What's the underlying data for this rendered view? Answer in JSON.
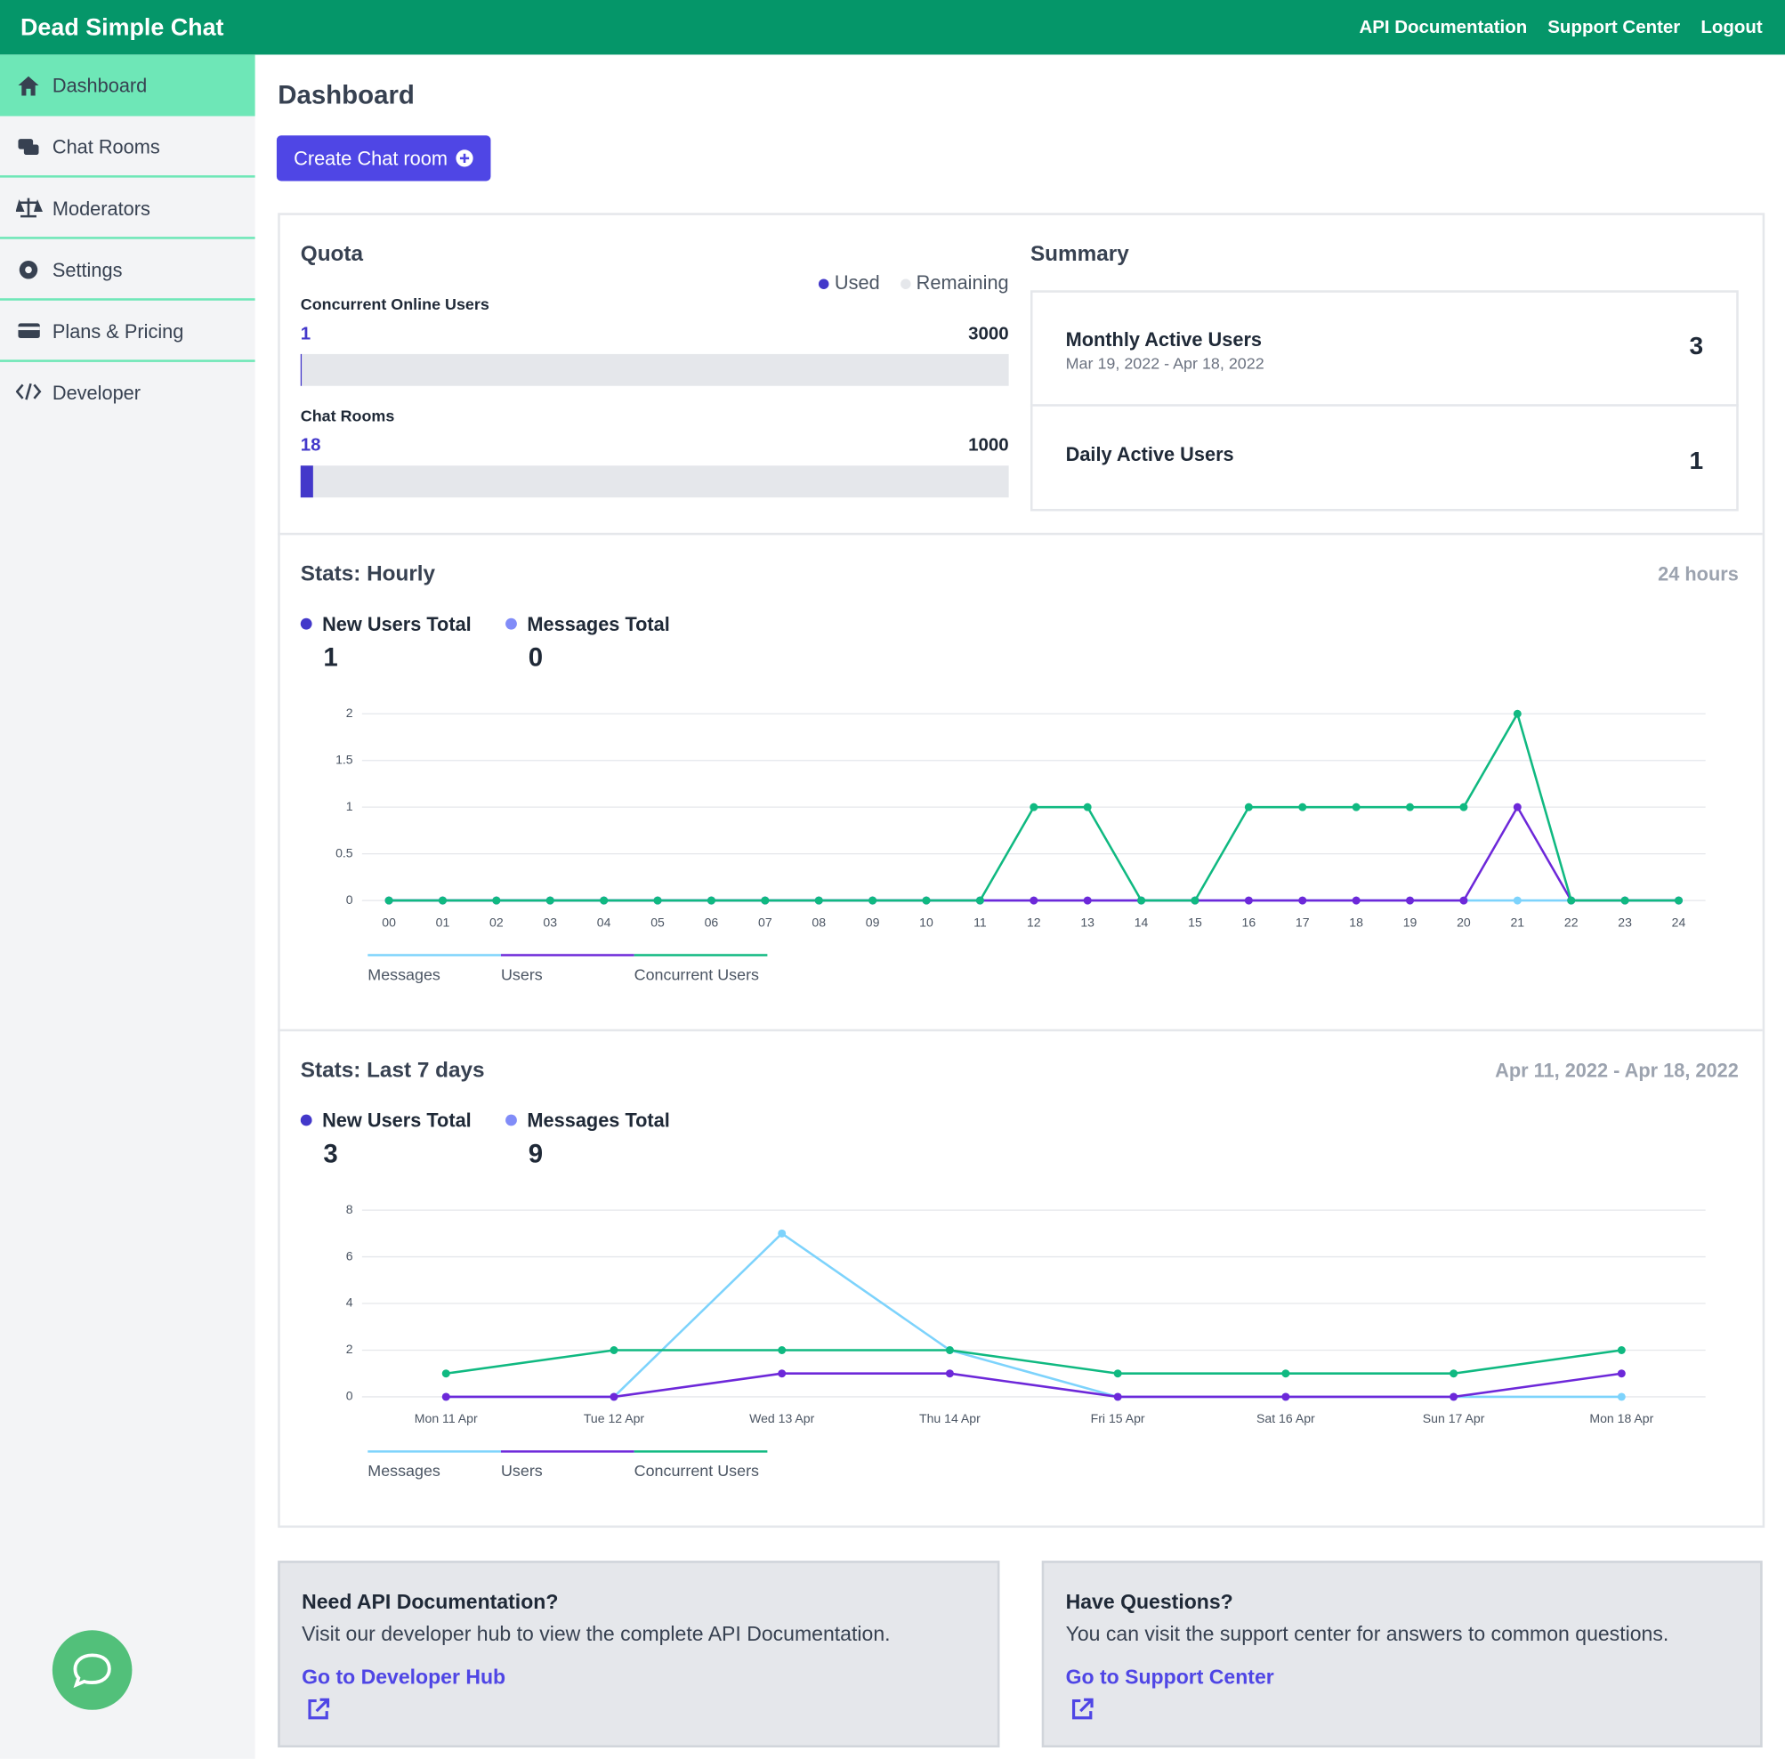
{
  "header": {
    "brand": "Dead Simple Chat",
    "nav": [
      "API Documentation",
      "Support Center",
      "Logout"
    ]
  },
  "sidebar": {
    "items": [
      "Dashboard",
      "Chat Rooms",
      "Moderators",
      "Settings",
      "Plans & Pricing",
      "Developer"
    ]
  },
  "page": {
    "title": "Dashboard",
    "button": "Create Chat room"
  },
  "quota": {
    "title": "Quota",
    "legend": [
      "Used",
      "Remaining"
    ],
    "items": [
      {
        "label": "Concurrent Online Users",
        "used": 1,
        "total": 3000
      },
      {
        "label": "Chat Rooms",
        "used": 18,
        "total": 1000
      }
    ]
  },
  "summary": {
    "title": "Summary",
    "items": [
      {
        "label": "Monthly Active Users",
        "range": "Mar 19, 2022 - Apr 18, 2022",
        "value": 3
      },
      {
        "label": "Daily Active Users",
        "value": 1
      }
    ]
  },
  "stats": [
    {
      "title": "Stats: Hourly",
      "period": "24 hours",
      "totals": [
        {
          "label": "New Users Total",
          "value": 1
        },
        {
          "label": "Messages Total",
          "value": 0
        }
      ],
      "chart": {
        "type": "line",
        "legend": "bottom",
        "grid": true,
        "categories": [
          "00",
          "01",
          "02",
          "03",
          "04",
          "05",
          "06",
          "07",
          "08",
          "09",
          "10",
          "11",
          "12",
          "13",
          "14",
          "15",
          "16",
          "17",
          "18",
          "19",
          "20",
          "21",
          "22",
          "23",
          "24"
        ],
        "ylim": [
          0,
          2
        ],
        "yticks": [
          0,
          0.5,
          1,
          1.5,
          2
        ],
        "series": [
          {
            "name": "Messages",
            "color": "#7dd3fc",
            "values": [
              0,
              0,
              0,
              0,
              0,
              0,
              0,
              0,
              0,
              0,
              0,
              0,
              0,
              0,
              0,
              0,
              0,
              0,
              0,
              0,
              0,
              0,
              0,
              0,
              0
            ]
          },
          {
            "name": "Users",
            "color": "#6d28d9",
            "values": [
              0,
              0,
              0,
              0,
              0,
              0,
              0,
              0,
              0,
              0,
              0,
              0,
              0,
              0,
              0,
              0,
              0,
              0,
              0,
              0,
              0,
              1,
              0,
              0,
              0
            ]
          },
          {
            "name": "Concurrent Users",
            "color": "#10b981",
            "values": [
              0,
              0,
              0,
              0,
              0,
              0,
              0,
              0,
              0,
              0,
              0,
              0,
              1,
              1,
              0,
              0,
              1,
              1,
              1,
              1,
              1,
              2,
              0,
              0,
              0
            ]
          }
        ]
      }
    },
    {
      "title": "Stats: Last 7 days",
      "period": "Apr 11, 2022 - Apr 18, 2022",
      "totals": [
        {
          "label": "New Users Total",
          "value": 3
        },
        {
          "label": "Messages Total",
          "value": 9
        }
      ],
      "chart": {
        "type": "line",
        "legend": "bottom",
        "grid": true,
        "categories": [
          "Mon 11 Apr",
          "Tue 12 Apr",
          "Wed 13 Apr",
          "Thu 14 Apr",
          "Fri 15 Apr",
          "Sat 16 Apr",
          "Sun 17 Apr",
          "Mon 18 Apr"
        ],
        "ylim": [
          0,
          8
        ],
        "yticks": [
          0,
          2,
          4,
          6,
          8
        ],
        "series": [
          {
            "name": "Messages",
            "color": "#7dd3fc",
            "values": [
              0,
              0,
              7,
              2,
              0,
              0,
              0,
              0
            ]
          },
          {
            "name": "Users",
            "color": "#6d28d9",
            "values": [
              0,
              0,
              1,
              1,
              0,
              0,
              0,
              1
            ]
          },
          {
            "name": "Concurrent Users",
            "color": "#10b981",
            "values": [
              1,
              2,
              2,
              2,
              1,
              1,
              1,
              2
            ]
          }
        ]
      }
    }
  ],
  "cards": [
    {
      "title": "Need API Documentation?",
      "text": "Visit our developer hub to view the complete API Documentation.",
      "link": "Go to Developer Hub"
    },
    {
      "title": "Have Questions?",
      "text": "You can visit the support center for answers to common questions.",
      "link": "Go to Support Center"
    }
  ]
}
